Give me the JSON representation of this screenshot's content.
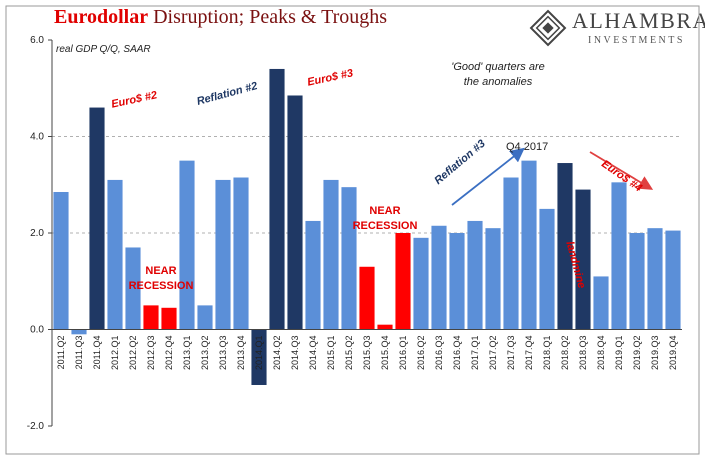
{
  "header": {
    "title_part1": "Eurodollar",
    "title_part2": " Disruption; Peaks & Troughs",
    "brand_name": "ALHAMBRA",
    "brand_sub": "INVESTMENTS"
  },
  "chart_data": {
    "type": "bar",
    "title": "Eurodollar Disruption; Peaks & Troughs",
    "ylabel": "real GDP Q/Q, SAAR",
    "ylim": [
      -2,
      6
    ],
    "yticks": [
      "6.0",
      "4.0",
      "2.0",
      "0.0",
      "-2.0"
    ],
    "grid": true,
    "categories": [
      "2011.Q2",
      "2011.Q3",
      "2011.Q4",
      "2012.Q1",
      "2012.Q2",
      "2012.Q3",
      "2012.Q4",
      "2013.Q1",
      "2013.Q2",
      "2013.Q3",
      "2013.Q4",
      "2014.Q1",
      "2014.Q2",
      "2014.Q3",
      "2014.Q4",
      "2015.Q1",
      "2015.Q2",
      "2015.Q3",
      "2015.Q4",
      "2016.Q1",
      "2016.Q2",
      "2016.Q3",
      "2016.Q4",
      "2017.Q1",
      "2017.Q2",
      "2017.Q3",
      "2017.Q4",
      "2018.Q1",
      "2018.Q2",
      "2018.Q3",
      "2018.Q4",
      "2019.Q1",
      "2019.Q2",
      "2019.Q3",
      "2019.Q4"
    ],
    "values": [
      2.85,
      -0.1,
      4.6,
      3.1,
      1.7,
      0.5,
      0.45,
      3.5,
      0.5,
      3.1,
      3.15,
      -1.15,
      5.4,
      4.85,
      2.25,
      3.1,
      2.95,
      1.3,
      0.1,
      2.0,
      1.9,
      2.15,
      2.0,
      2.25,
      2.1,
      3.15,
      3.5,
      2.5,
      3.45,
      2.9,
      1.1,
      3.05,
      2.0,
      2.1,
      2.05
    ],
    "bar_kind": [
      "normal",
      "normal",
      "peak",
      "normal",
      "normal",
      "recession",
      "recession",
      "normal",
      "normal",
      "normal",
      "normal",
      "peak",
      "peak",
      "peak",
      "normal",
      "normal",
      "normal",
      "recession",
      "recession",
      "recession",
      "normal",
      "normal",
      "normal",
      "normal",
      "normal",
      "normal",
      "normal",
      "normal",
      "peak",
      "peak",
      "normal",
      "normal",
      "normal",
      "normal",
      "normal"
    ],
    "colors": {
      "normal": "#5b8fd8",
      "peak": "#1f3864",
      "recession": "#ff0000"
    },
    "annotations": {
      "subtitle": "real GDP Q/Q, SAAR",
      "good_quarters_line1": "'Good' quarters are",
      "good_quarters_line2": "the anomalies",
      "euro2": "Euro$ #2",
      "euro3": "Euro$ #3",
      "euro4": "Euro$ #4",
      "reflation2": "Reflation #2",
      "reflation3": "Reflation #3",
      "q4_2017": "Q4 2017",
      "landmine": "landmine",
      "near1": "NEAR",
      "recession1": "RECESSION",
      "near2": "NEAR",
      "recession2": "RECESSION"
    }
  }
}
